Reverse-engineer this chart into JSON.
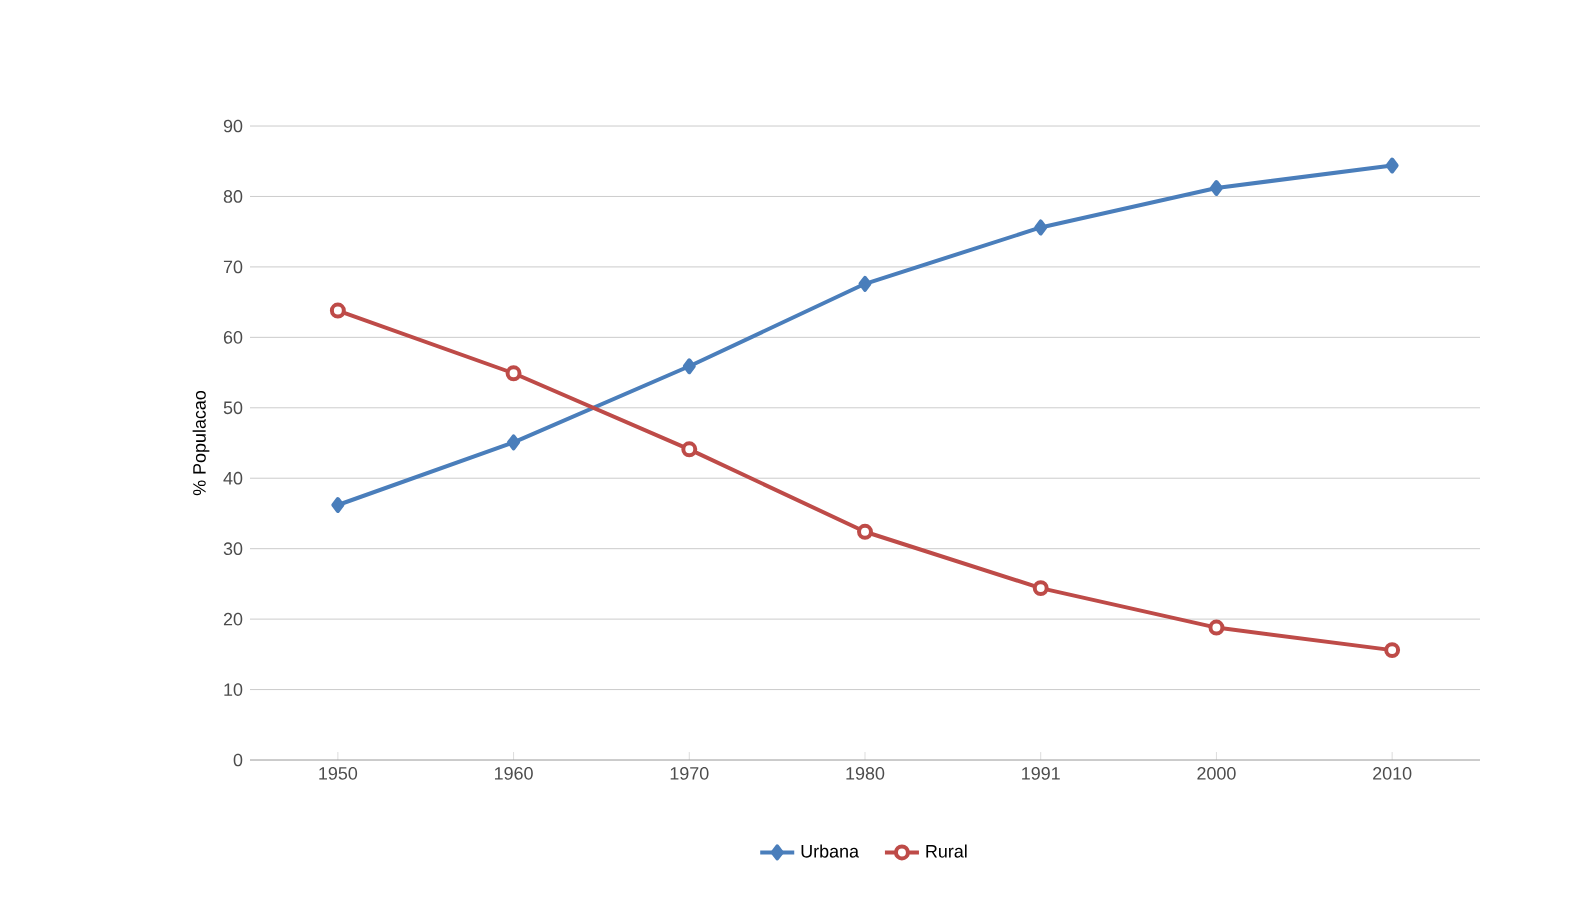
{
  "chart_data": {
    "type": "line",
    "ylabel": "% Populacao",
    "categories": [
      "1950",
      "1960",
      "1970",
      "1980",
      "1991",
      "2000",
      "2010"
    ],
    "series": [
      {
        "name": "Urbana",
        "color": "#4a7ebb",
        "marker": "diamond",
        "values": [
          36.2,
          45.1,
          55.9,
          67.6,
          75.6,
          81.2,
          84.4
        ]
      },
      {
        "name": "Rural",
        "color": "#be4b48",
        "marker": "circle",
        "values": [
          63.8,
          54.9,
          44.1,
          32.4,
          24.4,
          18.8,
          15.6
        ]
      }
    ],
    "ylim": [
      0,
      90
    ],
    "yticks": [
      0,
      10,
      20,
      30,
      40,
      50,
      60,
      70,
      80,
      90
    ],
    "grid": "y",
    "legend": "bottom",
    "line_style": "solid"
  }
}
